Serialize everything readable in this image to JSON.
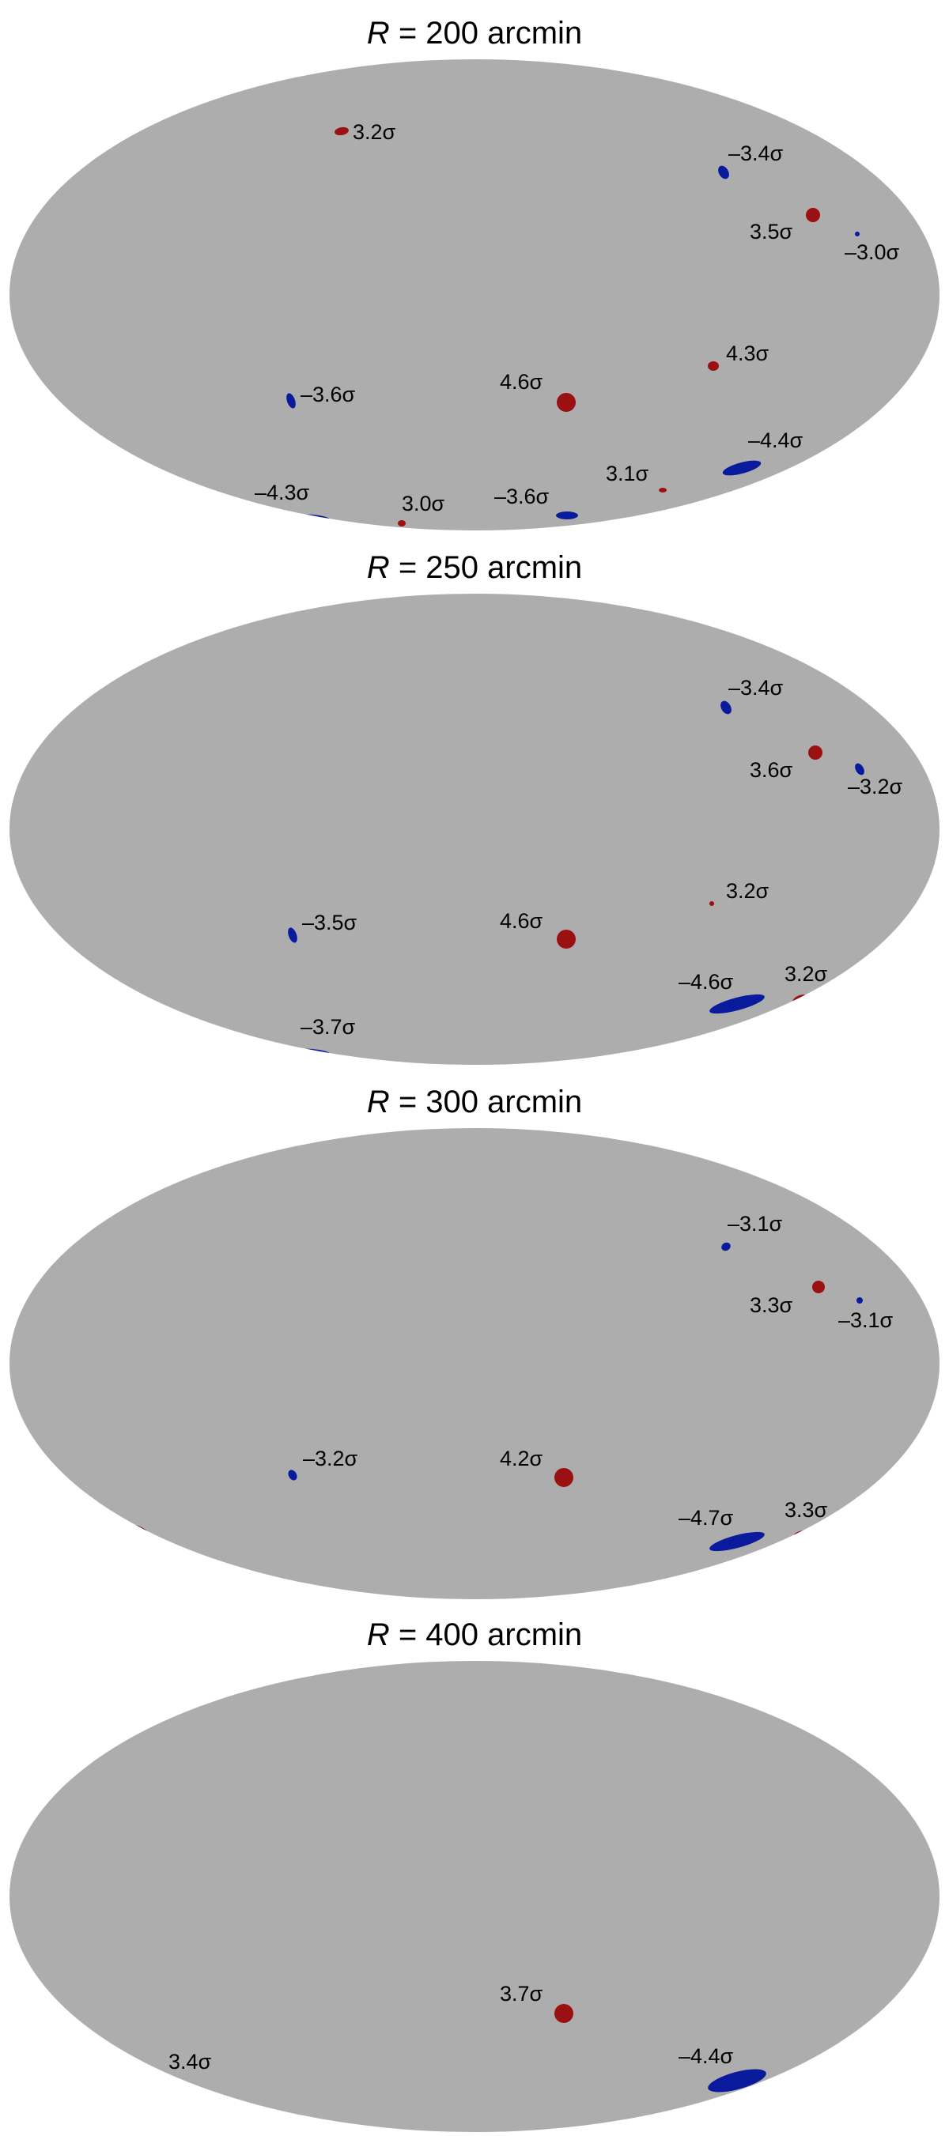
{
  "colors": {
    "background": "#ffffff",
    "map": "#adadad",
    "positive": "#9b1010",
    "negative": "#0a1a9c",
    "text": "#000000"
  },
  "panels": [
    {
      "r_symbol": "R",
      "title_rest": "= 200 arcmin",
      "spots": [
        {
          "sign": "positive",
          "label": "3.2σ"
        },
        {
          "sign": "negative",
          "label": "–3.4σ"
        },
        {
          "sign": "positive",
          "label": "3.5σ"
        },
        {
          "sign": "negative",
          "label": "–3.0σ"
        },
        {
          "sign": "positive",
          "label": "4.3σ"
        },
        {
          "sign": "negative",
          "label": "–3.6σ"
        },
        {
          "sign": "positive",
          "label": "4.6σ"
        },
        {
          "sign": "negative",
          "label": "–4.4σ"
        },
        {
          "sign": "positive",
          "label": "3.1σ"
        },
        {
          "sign": "negative",
          "label": "–4.3σ"
        },
        {
          "sign": "positive",
          "label": "3.0σ"
        },
        {
          "sign": "negative",
          "label": "–3.6σ"
        }
      ]
    },
    {
      "r_symbol": "R",
      "title_rest": "= 250 arcmin",
      "spots": [
        {
          "sign": "negative",
          "label": "–3.4σ"
        },
        {
          "sign": "positive",
          "label": "3.6σ"
        },
        {
          "sign": "negative",
          "label": "–3.2σ"
        },
        {
          "sign": "positive",
          "label": "3.2σ"
        },
        {
          "sign": "negative",
          "label": "–3.5σ"
        },
        {
          "sign": "positive",
          "label": "4.6σ"
        },
        {
          "sign": "negative",
          "label": "–4.6σ"
        },
        {
          "sign": "positive",
          "label": "3.2σ"
        },
        {
          "sign": "negative",
          "label": "–3.7σ"
        }
      ]
    },
    {
      "r_symbol": "R",
      "title_rest": "= 300 arcmin",
      "spots": [
        {
          "sign": "negative",
          "label": "–3.1σ"
        },
        {
          "sign": "positive",
          "label": "3.3σ"
        },
        {
          "sign": "negative",
          "label": "–3.1σ"
        },
        {
          "sign": "negative",
          "label": "–3.2σ"
        },
        {
          "sign": "positive",
          "label": "4.2σ"
        },
        {
          "sign": "negative",
          "label": "–4.7σ"
        },
        {
          "sign": "positive",
          "label": "3.3σ"
        },
        {
          "sign": "positive",
          "label": ""
        }
      ]
    },
    {
      "r_symbol": "R",
      "title_rest": "= 400 arcmin",
      "spots": [
        {
          "sign": "positive",
          "label": "3.7σ"
        },
        {
          "sign": "positive",
          "label": "3.4σ"
        },
        {
          "sign": "negative",
          "label": "–4.4σ"
        },
        {
          "sign": "positive",
          "label": ""
        }
      ]
    }
  ]
}
